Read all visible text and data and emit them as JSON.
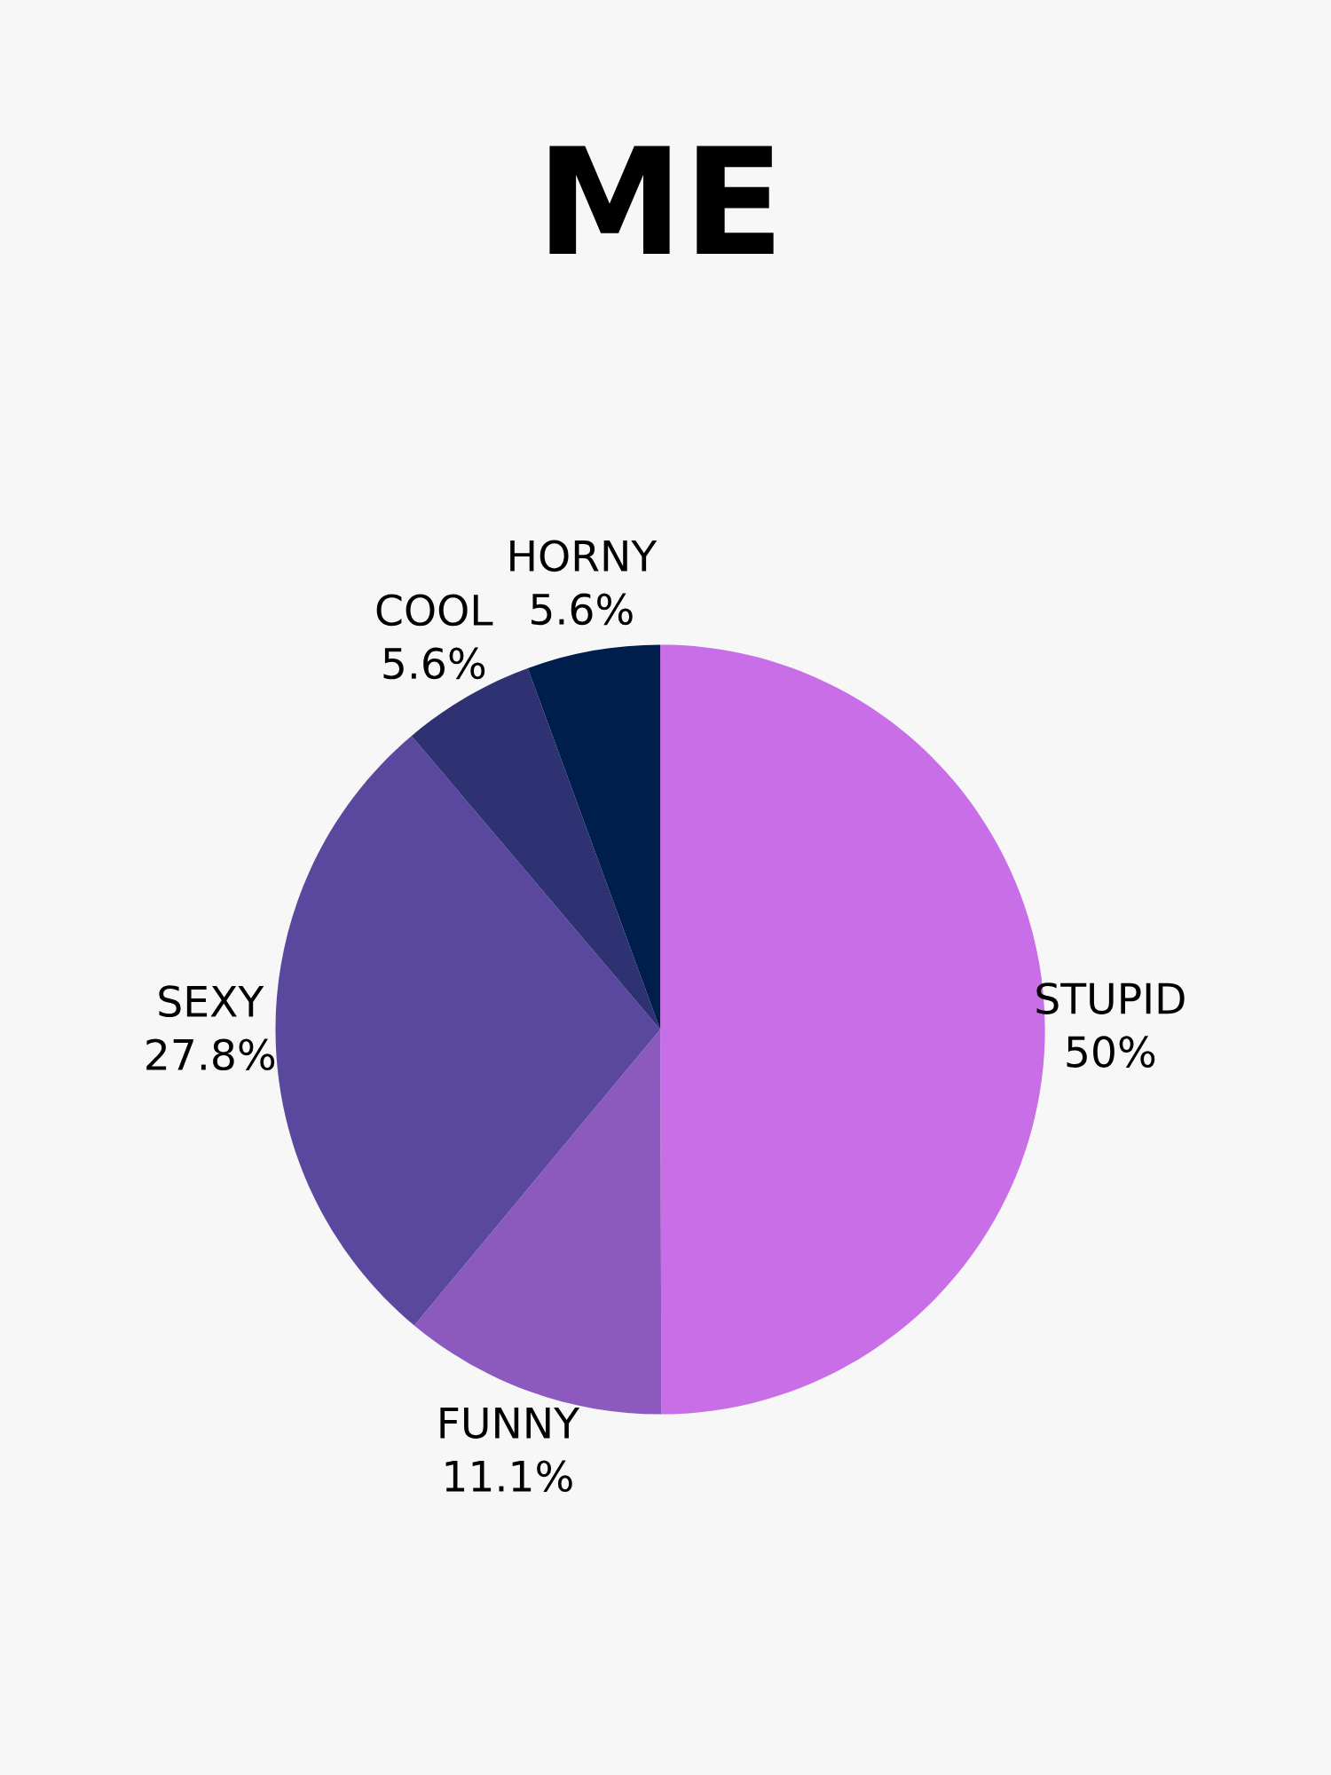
{
  "chart_data": {
    "type": "pie",
    "title": "ME",
    "categories": [
      "STUPID",
      "FUNNY",
      "SEXY",
      "COOL",
      "HORNY"
    ],
    "values": [
      50,
      11.1,
      27.8,
      5.6,
      5.6
    ],
    "value_labels": [
      "50%",
      "11.1%",
      "27.8%",
      "5.6%",
      "5.6%"
    ],
    "colors": [
      "#c86ee6",
      "#8c5abf",
      "#5a489e",
      "#2e3272",
      "#001e4c"
    ]
  }
}
